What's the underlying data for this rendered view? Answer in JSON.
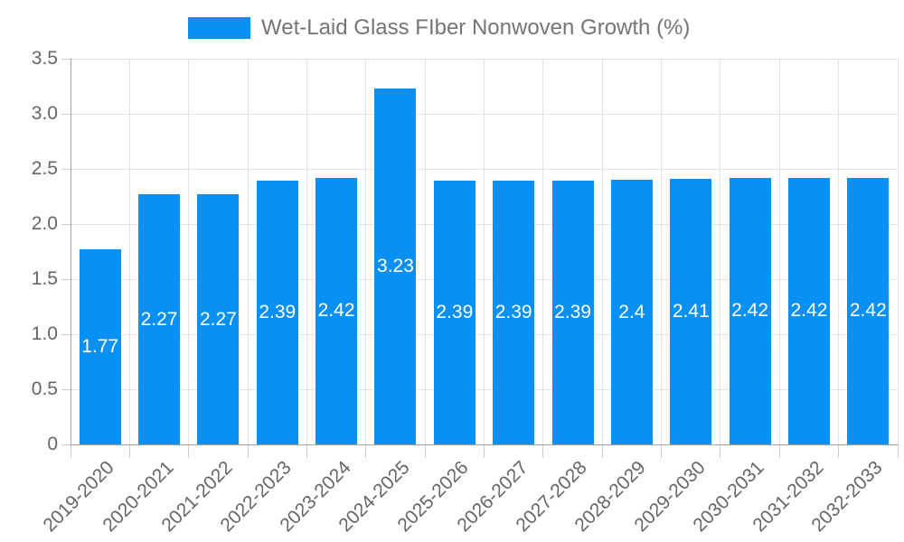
{
  "legend": {
    "label": "Wet-Laid Glass FIber Nonwoven Growth (%)"
  },
  "colors": {
    "bar": "#0990f5",
    "gridline": "#e3e3e3",
    "axis_line": "#a3a3a3",
    "tick": "#cccccc",
    "axis_text": "#666666",
    "legend_text": "#757575",
    "value_label_text": "#ffffff",
    "background": "#ffffff"
  },
  "chart_data": {
    "type": "bar",
    "title": "Wet-Laid Glass FIber Nonwoven Growth (%)",
    "xlabel": "",
    "ylabel": "",
    "ylim": [
      0,
      3.5
    ],
    "grid": true,
    "legend_position": "top-center",
    "categories": [
      "2019-2020",
      "2020-2021",
      "2021-2022",
      "2022-2023",
      "2023-2024",
      "2024-2025",
      "2025-2026",
      "2026-2027",
      "2027-2028",
      "2028-2029",
      "2029-2030",
      "2030-2031",
      "2031-2032",
      "2032-2033"
    ],
    "values": [
      1.77,
      2.27,
      2.27,
      2.39,
      2.42,
      3.23,
      2.39,
      2.39,
      2.39,
      2.4,
      2.41,
      2.42,
      2.42,
      2.42
    ],
    "value_labels": [
      "1.77",
      "2.27",
      "2.27",
      "2.39",
      "2.42",
      "3.23",
      "2.39",
      "2.39",
      "2.39",
      "2.4",
      "2.41",
      "2.42",
      "2.42",
      "2.42"
    ],
    "yticks": [
      {
        "value": 0,
        "label": "0"
      },
      {
        "value": 0.5,
        "label": "0.5"
      },
      {
        "value": 1.0,
        "label": "1.0"
      },
      {
        "value": 1.5,
        "label": "1.5"
      },
      {
        "value": 2.0,
        "label": "2.0"
      },
      {
        "value": 2.5,
        "label": "2.5"
      },
      {
        "value": 3.0,
        "label": "3.0"
      },
      {
        "value": 3.5,
        "label": "3.5"
      }
    ]
  }
}
